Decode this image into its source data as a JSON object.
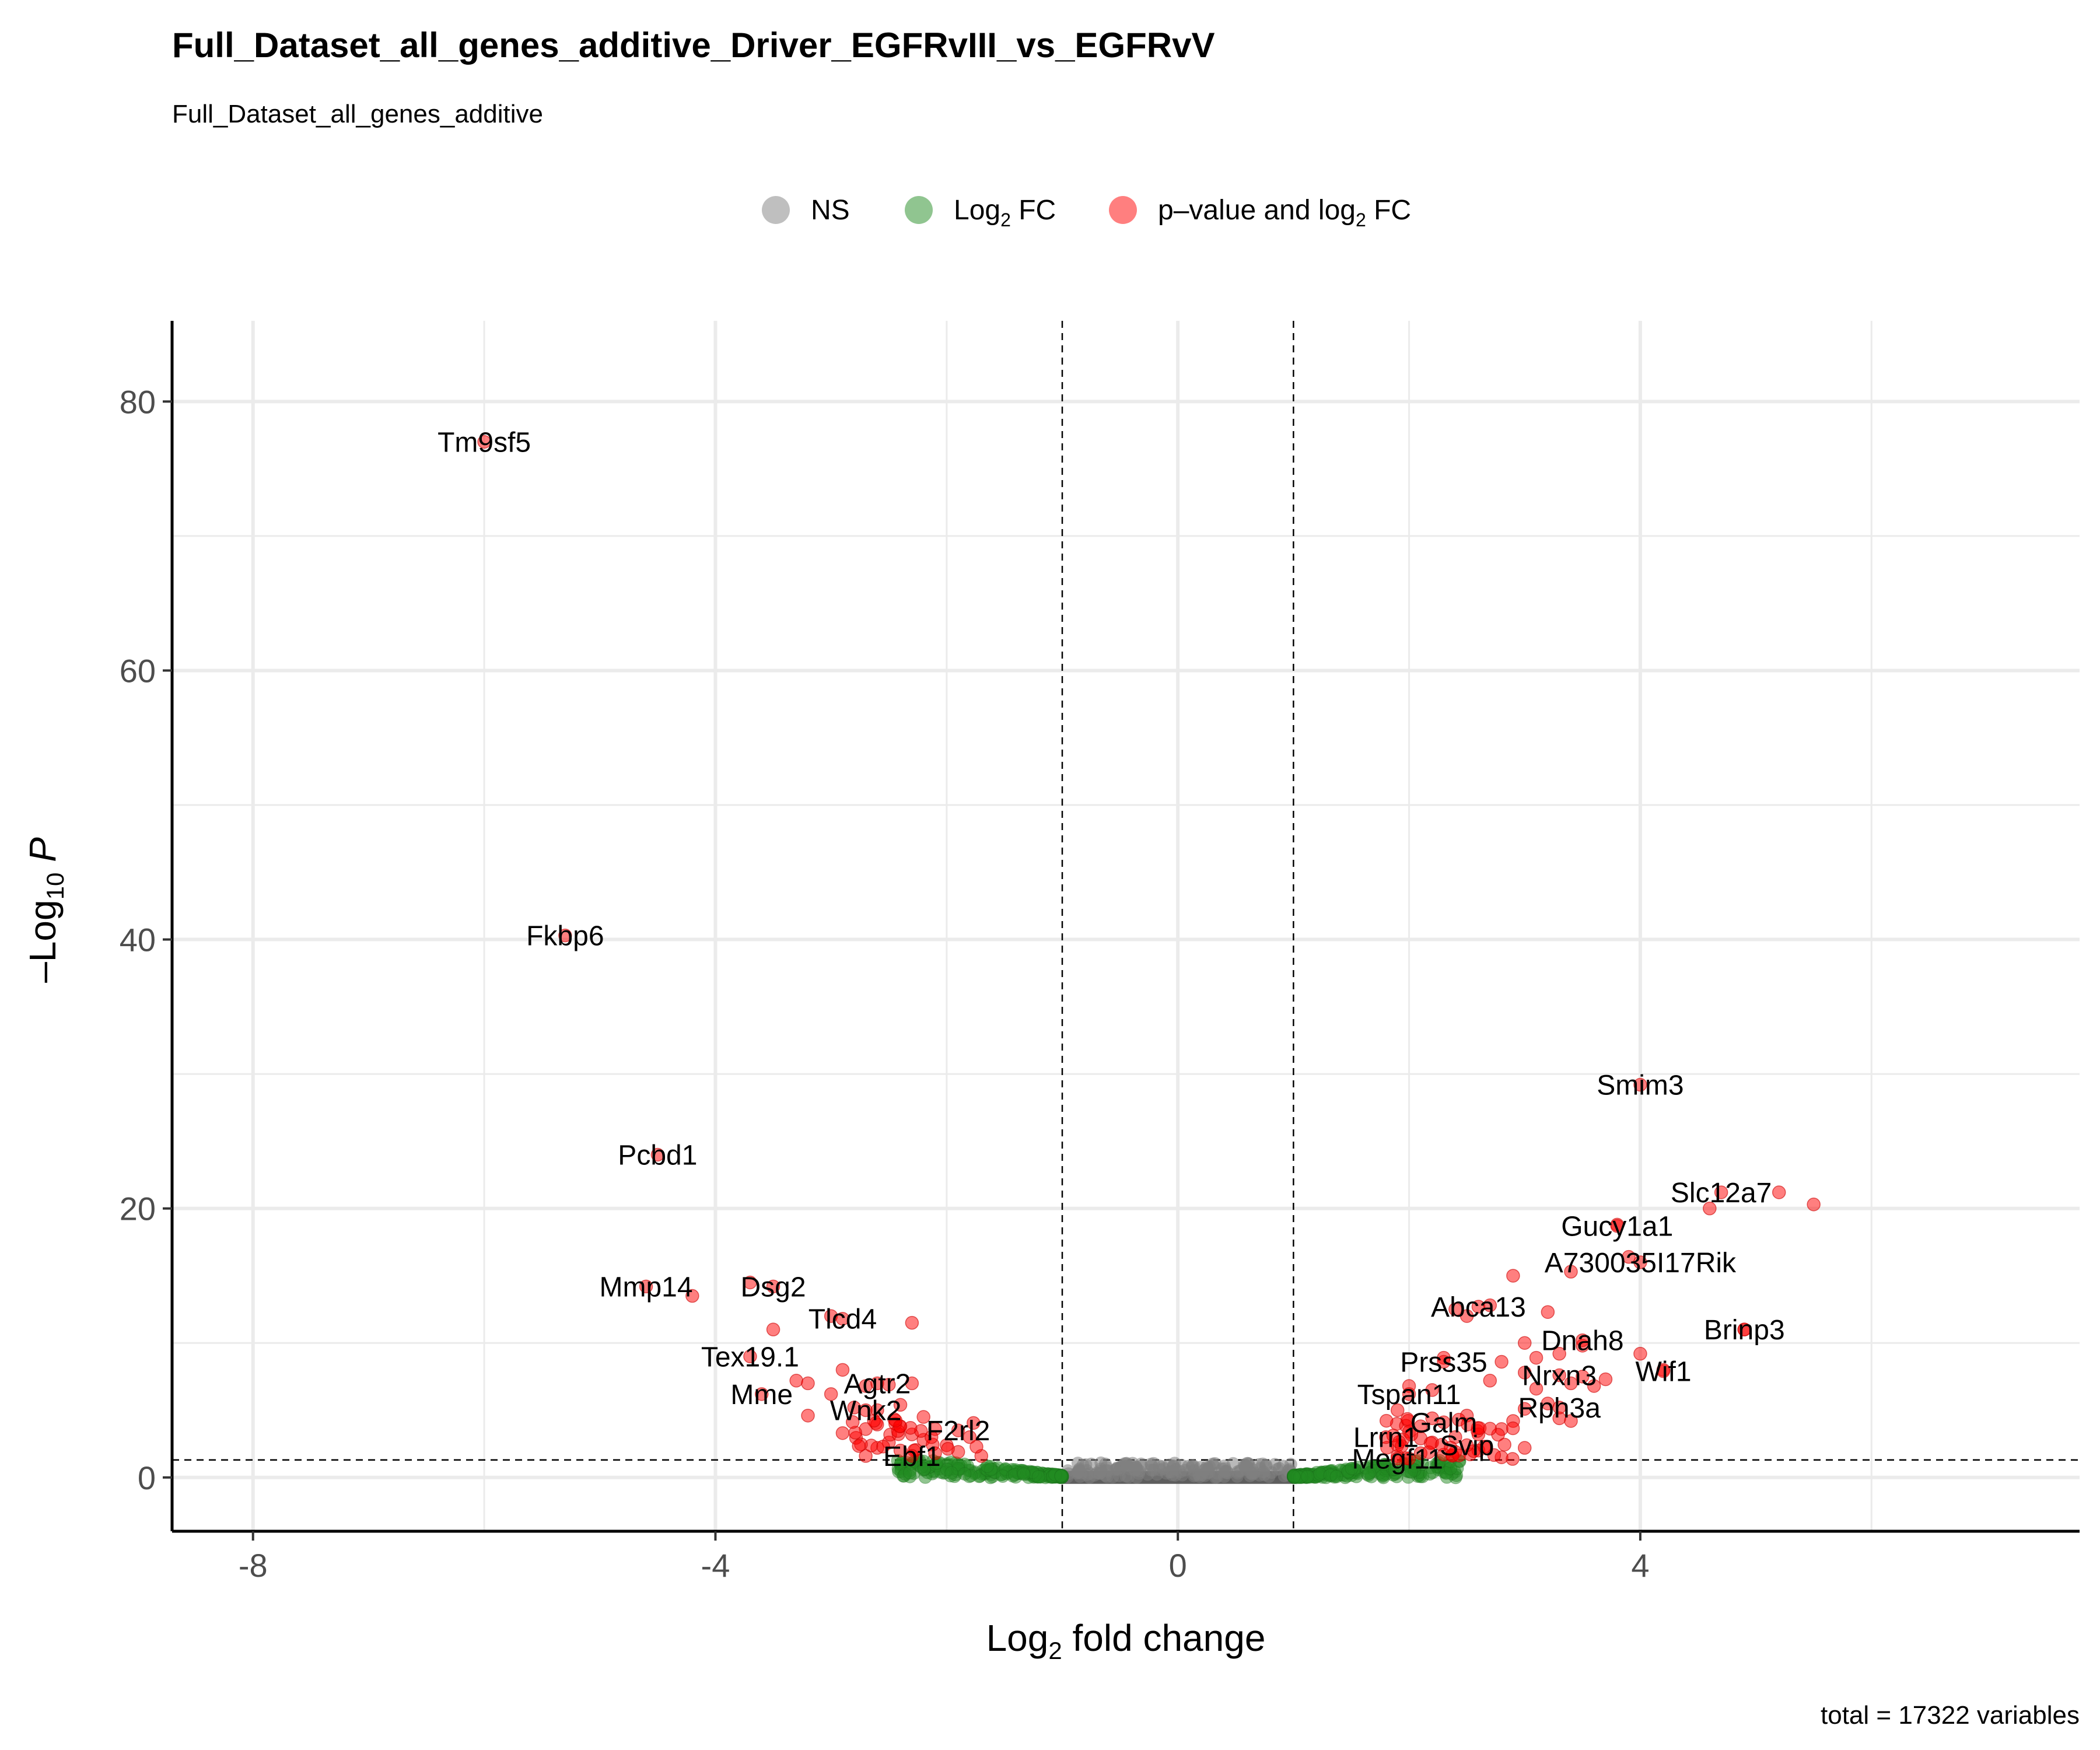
{
  "chart_data": {
    "type": "scatter",
    "title": "Full_Dataset_all_genes_additive_Driver_EGFRvIII_vs_EGFRvV",
    "subtitle": "Full_Dataset_all_genes_additive",
    "legend": {
      "placement": "top",
      "entries": [
        {
          "key": "ns",
          "text": "NS",
          "color": "#808080"
        },
        {
          "key": "fc",
          "pre": "Log",
          "sub": "2",
          "post": " FC",
          "color": "#228B22"
        },
        {
          "key": "pfc",
          "pre": "p–value and log",
          "sub": "2",
          "post": " FC",
          "color": "#FF0000"
        }
      ]
    },
    "xlabel": {
      "pre": "Log",
      "sub": "2",
      "post": " fold change"
    },
    "ylabel": {
      "pre": "–Log",
      "sub": "10",
      "post": " P"
    },
    "xlim": [
      -8.7,
      7.8
    ],
    "ylim": [
      -4,
      86
    ],
    "x_ticks": [
      -8,
      -4,
      0,
      4
    ],
    "x_tick_labels": [
      "-8",
      "-4",
      "0",
      "4"
    ],
    "y_ticks": [
      0,
      20,
      40,
      60,
      80
    ],
    "y_tick_labels": [
      "0",
      "20",
      "40",
      "60",
      "80"
    ],
    "grid": true,
    "cutoffs": {
      "fc": [
        -1,
        1
      ],
      "p": 1.3
    },
    "caption": "total = 17322 variables",
    "labeled_points": [
      {
        "gene": "Tm9sf5",
        "x": -6.0,
        "y": 77.0
      },
      {
        "gene": "Fkbp6",
        "x": -5.3,
        "y": 40.3
      },
      {
        "gene": "Pcbd1",
        "x": -4.5,
        "y": 24.0
      },
      {
        "gene": "Mmp14",
        "x": -4.6,
        "y": 14.2
      },
      {
        "gene": "Dsg2",
        "x": -3.5,
        "y": 14.2
      },
      {
        "gene": "Tlcd4",
        "x": -2.9,
        "y": 11.8
      },
      {
        "gene": "Tex19.1",
        "x": -3.7,
        "y": 9.0
      },
      {
        "gene": "Agtr2",
        "x": -2.6,
        "y": 7.0
      },
      {
        "gene": "Mme",
        "x": -3.6,
        "y": 6.2
      },
      {
        "gene": "Wnk2",
        "x": -2.7,
        "y": 5.0
      },
      {
        "gene": "F2rl2",
        "x": -1.9,
        "y": 3.5
      },
      {
        "gene": "Ebf1",
        "x": -2.3,
        "y": 1.6
      },
      {
        "gene": "Smim3",
        "x": 4.0,
        "y": 29.2
      },
      {
        "gene": "Slc12a7",
        "x": 4.7,
        "y": 21.2
      },
      {
        "gene": "Gucy1a1",
        "x": 3.8,
        "y": 18.7
      },
      {
        "gene": "A730035I17Rik",
        "x": 4.0,
        "y": 16.0
      },
      {
        "gene": "Abca13",
        "x": 2.6,
        "y": 12.7
      },
      {
        "gene": "Brinp3",
        "x": 4.9,
        "y": 11.0
      },
      {
        "gene": "Dnah8",
        "x": 3.5,
        "y": 10.2
      },
      {
        "gene": "Prss35",
        "x": 2.3,
        "y": 8.6
      },
      {
        "gene": "Wif1",
        "x": 4.2,
        "y": 7.9
      },
      {
        "gene": "Nrxn3",
        "x": 3.3,
        "y": 7.6
      },
      {
        "gene": "Tspan11",
        "x": 2.0,
        "y": 6.2
      },
      {
        "gene": "Rph3a",
        "x": 3.3,
        "y": 5.2
      },
      {
        "gene": "Galm",
        "x": 2.3,
        "y": 4.1
      },
      {
        "gene": "Lrrn1",
        "x": 1.8,
        "y": 3.0
      },
      {
        "gene": "Svip",
        "x": 2.5,
        "y": 2.4
      },
      {
        "gene": "Megf11",
        "x": 1.9,
        "y": 1.4
      }
    ],
    "other_significant_points": [
      [
        -4.2,
        13.5
      ],
      [
        -3.7,
        14.5
      ],
      [
        -3.5,
        11.0
      ],
      [
        -3.3,
        7.2
      ],
      [
        -3.2,
        7.0
      ],
      [
        -3.2,
        4.6
      ],
      [
        -3.0,
        6.2
      ],
      [
        -2.9,
        8.0
      ],
      [
        -2.9,
        3.3
      ],
      [
        -2.8,
        5.2
      ],
      [
        -2.7,
        6.8
      ],
      [
        -2.7,
        3.6
      ],
      [
        -2.6,
        5.0
      ],
      [
        -2.6,
        2.2
      ],
      [
        -2.5,
        6.9
      ],
      [
        -2.4,
        5.4
      ],
      [
        -2.4,
        3.8
      ],
      [
        -2.4,
        2.0
      ],
      [
        -2.3,
        11.5
      ],
      [
        -2.3,
        7.0
      ],
      [
        -2.3,
        3.2
      ],
      [
        -2.2,
        4.5
      ],
      [
        -2.2,
        2.8
      ],
      [
        -2.1,
        3.6
      ],
      [
        -2.0,
        2.4
      ],
      [
        -1.9,
        1.9
      ],
      [
        -1.8,
        3.0
      ],
      [
        -1.7,
        1.6
      ],
      [
        -2.7,
        1.6
      ],
      [
        -3.0,
        12.0
      ],
      [
        -2.5,
        2.6
      ],
      [
        -2.1,
        1.8
      ],
      [
        1.9,
        1.6
      ],
      [
        1.9,
        5.0
      ],
      [
        1.9,
        2.4
      ],
      [
        2.0,
        3.4
      ],
      [
        2.0,
        6.8
      ],
      [
        2.1,
        1.8
      ],
      [
        2.1,
        3.8
      ],
      [
        2.2,
        2.6
      ],
      [
        2.2,
        4.4
      ],
      [
        2.2,
        6.5
      ],
      [
        2.3,
        1.7
      ],
      [
        2.3,
        8.9
      ],
      [
        2.4,
        3.0
      ],
      [
        2.4,
        12.5
      ],
      [
        2.5,
        4.6
      ],
      [
        2.5,
        12.0
      ],
      [
        2.6,
        2.0
      ],
      [
        2.6,
        3.2
      ],
      [
        2.7,
        7.2
      ],
      [
        2.7,
        12.8
      ],
      [
        2.8,
        8.6
      ],
      [
        2.8,
        1.5
      ],
      [
        2.8,
        3.6
      ],
      [
        2.9,
        15.0
      ],
      [
        2.9,
        4.2
      ],
      [
        3.0,
        2.2
      ],
      [
        3.0,
        7.8
      ],
      [
        3.0,
        10.0
      ],
      [
        3.0,
        5.1
      ],
      [
        3.1,
        6.6
      ],
      [
        3.1,
        8.9
      ],
      [
        3.2,
        5.5
      ],
      [
        3.2,
        12.3
      ],
      [
        3.3,
        9.2
      ],
      [
        3.3,
        4.4
      ],
      [
        3.4,
        15.3
      ],
      [
        3.4,
        7.0
      ],
      [
        3.4,
        4.2
      ],
      [
        3.5,
        9.8
      ],
      [
        3.5,
        7.5
      ],
      [
        3.6,
        6.8
      ],
      [
        3.7,
        7.3
      ],
      [
        3.8,
        18.8
      ],
      [
        3.9,
        16.4
      ],
      [
        4.0,
        9.2
      ],
      [
        4.2,
        8.0
      ],
      [
        4.6,
        20.0
      ],
      [
        4.9,
        11.0
      ],
      [
        5.2,
        21.2
      ],
      [
        5.5,
        20.3
      ],
      [
        2.0,
        1.4
      ],
      [
        2.4,
        1.9
      ],
      [
        2.1,
        2.9
      ]
    ]
  }
}
